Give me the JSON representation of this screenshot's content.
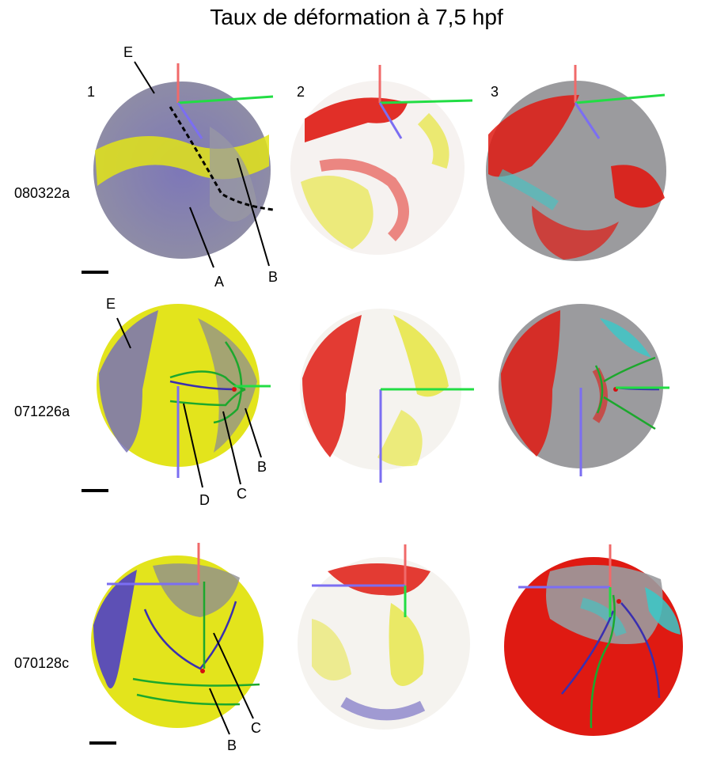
{
  "title": "Taux de déformation à 7,5 hpf",
  "columns": [
    "1",
    "2",
    "3"
  ],
  "rows": [
    {
      "label": "080322a",
      "annotations": [
        "E",
        "A",
        "B"
      ]
    },
    {
      "label": "071226a",
      "annotations": [
        "E",
        "D",
        "C",
        "B"
      ]
    },
    {
      "label": "070128c",
      "annotations": [
        "C",
        "B"
      ]
    }
  ],
  "legend_colors": {
    "blue_violet": "#6a5fb0",
    "grey": "#8f8f8f",
    "yellow": "#e8ea1a",
    "red": "#e11a12",
    "cyan": "#38c9c9",
    "axis_red": "#f06a6a",
    "axis_green": "#22dd44",
    "axis_blue": "#7b6ef2",
    "trace_green": "#1ca82d",
    "trace_purple": "#3a2fb0"
  }
}
